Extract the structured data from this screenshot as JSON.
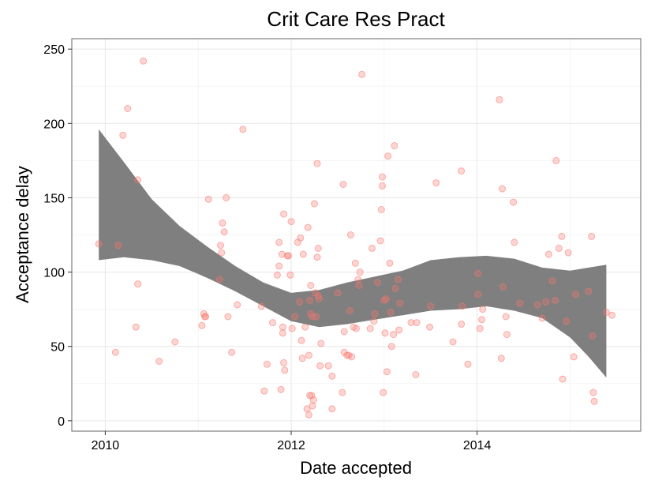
{
  "chart_data": {
    "type": "scatter",
    "title": "Crit Care Res Pract",
    "xlabel": "Date accepted",
    "ylabel": "Acceptance delay",
    "xlim": [
      2009.64,
      2015.76
    ],
    "ylim": [
      -7,
      257
    ],
    "xticks": [
      2010,
      2012,
      2014
    ],
    "xtick_labels": [
      "2010",
      "2012",
      "2014"
    ],
    "yticks": [
      0,
      50,
      100,
      150,
      200,
      250
    ],
    "ytick_labels": [
      "0",
      "50",
      "100",
      "150",
      "200",
      "250"
    ],
    "grid": true,
    "legend": "none",
    "point_color": "#f8766d",
    "band_color": "#7f7f7f",
    "points": [
      [
        2009.93,
        119
      ],
      [
        2010.11,
        46
      ],
      [
        2010.14,
        118
      ],
      [
        2010.19,
        192
      ],
      [
        2010.24,
        210
      ],
      [
        2010.33,
        63
      ],
      [
        2010.35,
        92
      ],
      [
        2010.35,
        162
      ],
      [
        2010.41,
        242
      ],
      [
        2010.58,
        40
      ],
      [
        2010.75,
        53
      ],
      [
        2011.04,
        64
      ],
      [
        2011.06,
        72
      ],
      [
        2011.07,
        70
      ],
      [
        2011.08,
        70
      ],
      [
        2011.11,
        149
      ],
      [
        2011.23,
        95
      ],
      [
        2011.24,
        118
      ],
      [
        2011.25,
        113
      ],
      [
        2011.26,
        133
      ],
      [
        2011.28,
        127
      ],
      [
        2011.3,
        150
      ],
      [
        2011.32,
        70
      ],
      [
        2011.36,
        46
      ],
      [
        2011.42,
        78
      ],
      [
        2011.48,
        196
      ],
      [
        2011.68,
        77
      ],
      [
        2011.71,
        20
      ],
      [
        2011.74,
        38
      ],
      [
        2011.8,
        66
      ],
      [
        2011.85,
        98
      ],
      [
        2011.87,
        120
      ],
      [
        2011.87,
        104
      ],
      [
        2011.89,
        21
      ],
      [
        2011.9,
        112
      ],
      [
        2011.91,
        63
      ],
      [
        2011.91,
        59
      ],
      [
        2011.92,
        139
      ],
      [
        2011.92,
        39
      ],
      [
        2011.93,
        34
      ],
      [
        2011.96,
        111
      ],
      [
        2011.97,
        111
      ],
      [
        2011.99,
        98
      ],
      [
        2012.0,
        134
      ],
      [
        2012.01,
        62
      ],
      [
        2012.04,
        70
      ],
      [
        2012.07,
        120
      ],
      [
        2012.09,
        80
      ],
      [
        2012.1,
        123
      ],
      [
        2012.11,
        54
      ],
      [
        2012.12,
        42
      ],
      [
        2012.13,
        112
      ],
      [
        2012.15,
        63
      ],
      [
        2012.17,
        8
      ],
      [
        2012.18,
        130
      ],
      [
        2012.19,
        44
      ],
      [
        2012.19,
        4
      ],
      [
        2012.2,
        81
      ],
      [
        2012.2,
        17
      ],
      [
        2012.21,
        91
      ],
      [
        2012.21,
        72
      ],
      [
        2012.22,
        17
      ],
      [
        2012.23,
        10
      ],
      [
        2012.23,
        70
      ],
      [
        2012.24,
        14
      ],
      [
        2012.25,
        146
      ],
      [
        2012.26,
        86
      ],
      [
        2012.27,
        70
      ],
      [
        2012.28,
        110
      ],
      [
        2012.28,
        173
      ],
      [
        2012.29,
        116
      ],
      [
        2012.29,
        84
      ],
      [
        2012.3,
        82
      ],
      [
        2012.31,
        37
      ],
      [
        2012.32,
        52
      ],
      [
        2012.4,
        37
      ],
      [
        2012.44,
        30
      ],
      [
        2012.44,
        8
      ],
      [
        2012.5,
        86
      ],
      [
        2012.55,
        19
      ],
      [
        2012.56,
        159
      ],
      [
        2012.57,
        60
      ],
      [
        2012.57,
        46
      ],
      [
        2012.6,
        44
      ],
      [
        2012.62,
        44
      ],
      [
        2012.63,
        74
      ],
      [
        2012.64,
        125
      ],
      [
        2012.65,
        43
      ],
      [
        2012.67,
        63
      ],
      [
        2012.69,
        106
      ],
      [
        2012.7,
        62
      ],
      [
        2012.72,
        95
      ],
      [
        2012.73,
        91
      ],
      [
        2012.74,
        100
      ],
      [
        2012.76,
        233
      ],
      [
        2012.85,
        62
      ],
      [
        2012.87,
        116
      ],
      [
        2012.89,
        67
      ],
      [
        2012.9,
        72
      ],
      [
        2012.93,
        93
      ],
      [
        2012.96,
        121
      ],
      [
        2012.97,
        142
      ],
      [
        2012.98,
        164
      ],
      [
        2012.98,
        158
      ],
      [
        2012.99,
        19
      ],
      [
        2013.0,
        81
      ],
      [
        2013.01,
        59
      ],
      [
        2013.02,
        82
      ],
      [
        2013.03,
        33
      ],
      [
        2013.04,
        178
      ],
      [
        2013.06,
        106
      ],
      [
        2013.07,
        73
      ],
      [
        2013.08,
        50
      ],
      [
        2013.1,
        58
      ],
      [
        2013.11,
        185
      ],
      [
        2013.12,
        89
      ],
      [
        2013.15,
        95
      ],
      [
        2013.16,
        61
      ],
      [
        2013.17,
        79
      ],
      [
        2013.29,
        66
      ],
      [
        2013.34,
        31
      ],
      [
        2013.35,
        66
      ],
      [
        2013.49,
        63
      ],
      [
        2013.5,
        77
      ],
      [
        2013.56,
        160
      ],
      [
        2013.74,
        53
      ],
      [
        2013.83,
        65
      ],
      [
        2013.83,
        168
      ],
      [
        2013.84,
        77
      ],
      [
        2013.9,
        38
      ],
      [
        2014.01,
        85
      ],
      [
        2014.01,
        99
      ],
      [
        2014.03,
        62
      ],
      [
        2014.05,
        68
      ],
      [
        2014.06,
        75
      ],
      [
        2014.24,
        216
      ],
      [
        2014.26,
        42
      ],
      [
        2014.27,
        156
      ],
      [
        2014.28,
        90
      ],
      [
        2014.31,
        70
      ],
      [
        2014.32,
        58
      ],
      [
        2014.39,
        147
      ],
      [
        2014.4,
        120
      ],
      [
        2014.46,
        79
      ],
      [
        2014.65,
        78
      ],
      [
        2014.7,
        69
      ],
      [
        2014.74,
        80
      ],
      [
        2014.77,
        112
      ],
      [
        2014.81,
        94
      ],
      [
        2014.84,
        81
      ],
      [
        2014.85,
        175
      ],
      [
        2014.88,
        116
      ],
      [
        2014.91,
        124
      ],
      [
        2014.92,
        28
      ],
      [
        2014.96,
        67
      ],
      [
        2014.98,
        113
      ],
      [
        2015.04,
        43
      ],
      [
        2015.06,
        85
      ],
      [
        2015.2,
        87
      ],
      [
        2015.23,
        124
      ],
      [
        2015.24,
        57
      ],
      [
        2015.25,
        19
      ],
      [
        2015.26,
        13
      ],
      [
        2015.39,
        73
      ],
      [
        2015.45,
        71
      ]
    ],
    "smooth_band": {
      "x": [
        2009.93,
        2010.2,
        2010.5,
        2010.8,
        2011.1,
        2011.4,
        2011.7,
        2012.0,
        2012.3,
        2012.6,
        2012.9,
        2013.2,
        2013.5,
        2013.8,
        2014.1,
        2014.4,
        2014.7,
        2015.0,
        2015.2,
        2015.39
      ],
      "upper": [
        196,
        174,
        149,
        131,
        117,
        104,
        93,
        86,
        88,
        93,
        97,
        101,
        108,
        110,
        111,
        109,
        103,
        101,
        103,
        105
      ],
      "lower": [
        108,
        110,
        108,
        104,
        96,
        87,
        77,
        67,
        63,
        65,
        68,
        71,
        74,
        75,
        77,
        74,
        69,
        56,
        43,
        29
      ]
    }
  }
}
